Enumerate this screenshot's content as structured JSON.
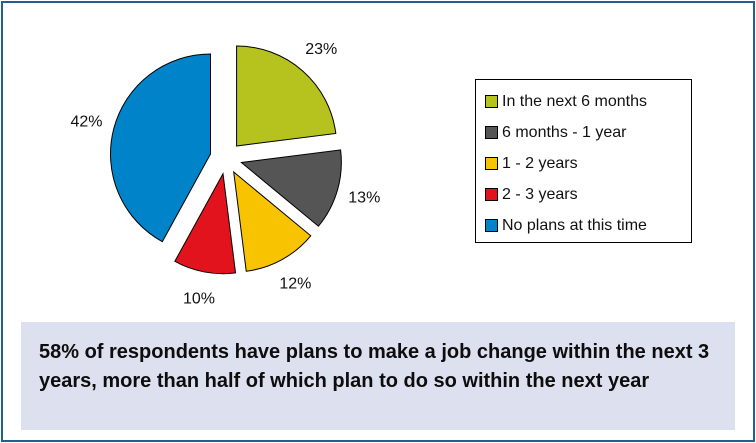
{
  "chart_data": {
    "type": "pie",
    "exploded": true,
    "start": "12 o'clock, clockwise",
    "slices": [
      {
        "label": "In the next 6 months",
        "value": 23,
        "data_label": "23%",
        "color": "#b6c21d"
      },
      {
        "label": "6 months - 1 year",
        "value": 13,
        "data_label": "13%",
        "color": "#555555"
      },
      {
        "label": "1 - 2 years",
        "value": 12,
        "data_label": "12%",
        "color": "#f8c300"
      },
      {
        "label": "2 - 3 years",
        "value": 10,
        "data_label": "10%",
        "color": "#e3131d"
      },
      {
        "label": "No plans at this time",
        "value": 42,
        "data_label": "42%",
        "color": "#0083c8"
      }
    ],
    "legend_position": "right"
  },
  "caption": "58% of respondents have plans to make a job change within the next 3 years, more than half of which plan to do so within the next year",
  "colors": {
    "frame_border": "#1f5f99",
    "caption_bg": "#dde1ef"
  }
}
